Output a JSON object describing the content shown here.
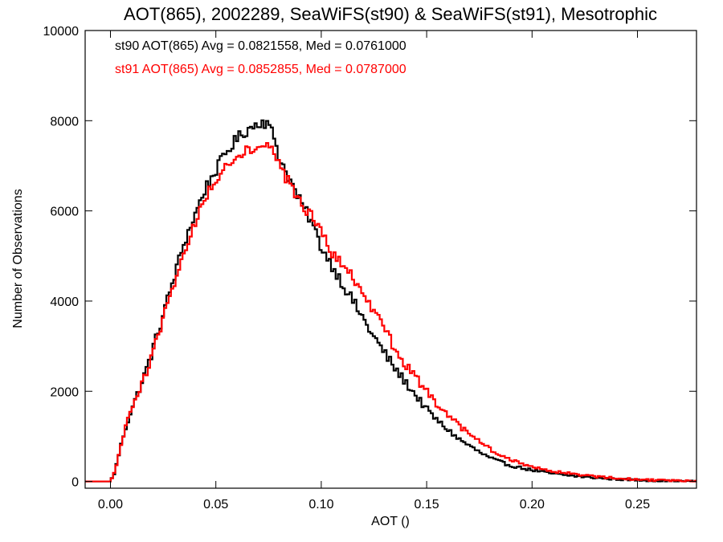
{
  "chart_data": {
    "type": "line",
    "title": "AOT(865), 2002289, SeaWiFS(st90) & SeaWiFS(st91), Mesotrophic",
    "xlabel": "AOT ()",
    "ylabel": "Number of Observations",
    "xlim": [
      -0.012,
      0.278
    ],
    "ylim": [
      -150,
      10000
    ],
    "x_ticks": [
      0.0,
      0.05,
      0.1,
      0.15,
      0.2,
      0.25
    ],
    "x_tick_labels": [
      "0.00",
      "0.05",
      "0.10",
      "0.15",
      "0.20",
      "0.25"
    ],
    "y_ticks": [
      0,
      2000,
      4000,
      6000,
      8000,
      10000
    ],
    "y_tick_labels": [
      "0",
      "2000",
      "4000",
      "6000",
      "8000",
      "10000"
    ],
    "grid": false,
    "legend_position": "top-left",
    "series": [
      {
        "name": "st90",
        "label": "st90 AOT(865) Avg = 0.0821558, Med = 0.0761000",
        "color": "#000000",
        "x": [
          -0.012,
          0.0,
          0.002,
          0.004,
          0.006,
          0.008,
          0.01,
          0.015,
          0.02,
          0.025,
          0.03,
          0.035,
          0.04,
          0.045,
          0.05,
          0.055,
          0.06,
          0.065,
          0.07,
          0.072,
          0.075,
          0.078,
          0.08,
          0.085,
          0.09,
          0.095,
          0.1,
          0.105,
          0.11,
          0.115,
          0.12,
          0.125,
          0.13,
          0.135,
          0.14,
          0.145,
          0.15,
          0.155,
          0.16,
          0.165,
          0.17,
          0.175,
          0.18,
          0.185,
          0.19,
          0.2,
          0.21,
          0.22,
          0.23,
          0.24,
          0.25,
          0.26,
          0.278
        ],
        "y": [
          0,
          0,
          200,
          600,
          1000,
          1300,
          1600,
          2200,
          2900,
          3700,
          4500,
          5300,
          5900,
          6500,
          6900,
          7300,
          7600,
          7800,
          7950,
          8000,
          7900,
          7600,
          7200,
          6700,
          6200,
          5800,
          5200,
          4800,
          4400,
          4000,
          3600,
          3200,
          2850,
          2500,
          2200,
          1900,
          1600,
          1350,
          1150,
          950,
          800,
          650,
          520,
          430,
          350,
          250,
          170,
          120,
          80,
          50,
          30,
          15,
          0
        ]
      },
      {
        "name": "st91",
        "label": "st91 AOT(865) Avg = 0.0852855, Med = 0.0787000",
        "color": "#ff0000",
        "x": [
          -0.012,
          0.0,
          0.002,
          0.004,
          0.006,
          0.008,
          0.01,
          0.015,
          0.02,
          0.025,
          0.03,
          0.035,
          0.04,
          0.045,
          0.05,
          0.055,
          0.06,
          0.065,
          0.07,
          0.072,
          0.075,
          0.078,
          0.08,
          0.085,
          0.09,
          0.095,
          0.1,
          0.105,
          0.11,
          0.115,
          0.12,
          0.125,
          0.13,
          0.135,
          0.14,
          0.145,
          0.15,
          0.155,
          0.16,
          0.165,
          0.17,
          0.175,
          0.18,
          0.185,
          0.19,
          0.2,
          0.21,
          0.22,
          0.23,
          0.24,
          0.25,
          0.26,
          0.278
        ],
        "y": [
          0,
          0,
          200,
          600,
          1000,
          1300,
          1600,
          2150,
          2850,
          3600,
          4350,
          5100,
          5700,
          6300,
          6700,
          7000,
          7250,
          7350,
          7450,
          7500,
          7400,
          7300,
          7000,
          6600,
          6200,
          5900,
          5500,
          5100,
          4800,
          4500,
          4100,
          3750,
          3350,
          2950,
          2600,
          2300,
          2000,
          1700,
          1450,
          1250,
          1050,
          880,
          720,
          580,
          470,
          330,
          230,
          160,
          110,
          70,
          45,
          25,
          0
        ]
      }
    ]
  }
}
